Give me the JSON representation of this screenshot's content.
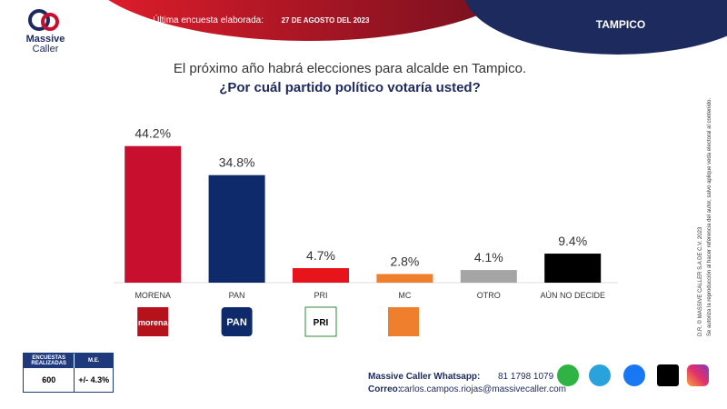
{
  "header": {
    "survey_label": "Última encuesta elaborada:",
    "survey_date": "27 DE AGOSTO  DEL 2023",
    "city": "TAMPICO",
    "brand": [
      "Massive",
      "Caller"
    ]
  },
  "chart_data": {
    "type": "bar",
    "title": "El próximo año habrá elecciones para alcalde en Tampico.",
    "subtitle": "¿Por cuál partido político votaría usted?",
    "categories": [
      "MORENA",
      "PAN",
      "PRI",
      "MC",
      "OTRO",
      "AÚN NO DECIDE"
    ],
    "values": [
      44.2,
      34.8,
      4.7,
      2.8,
      4.1,
      9.4
    ],
    "value_labels": [
      "44.2%",
      "34.8%",
      "4.7%",
      "2.8%",
      "4.1%",
      "9.4%"
    ],
    "colors": [
      "#c8102e",
      "#0f2a6b",
      "#e8141c",
      "#f07f2d",
      "#a5a5a5",
      "#000000"
    ]
  },
  "party_logos": [
    "morena",
    "PAN",
    "PRI"
  ],
  "table": {
    "header": [
      "ENCUESTAS REALIZADAS",
      "M.E."
    ],
    "row": [
      "600",
      "+/- 4.3%"
    ]
  },
  "footer": {
    "whatsapp_label": "Massive Caller Whatsapp:",
    "whatsapp": "81 1798 1079",
    "email_label": "Correo:",
    "email": "carlos.campos.riojas@massivecaller.com"
  },
  "side_notes": [
    "D.R. © MASSIVE CALLER S.A DE C.V. 2023",
    "Se autoriza la reproducción al hacer referencia del autor, salvo aplique veda electoral al contenido."
  ]
}
